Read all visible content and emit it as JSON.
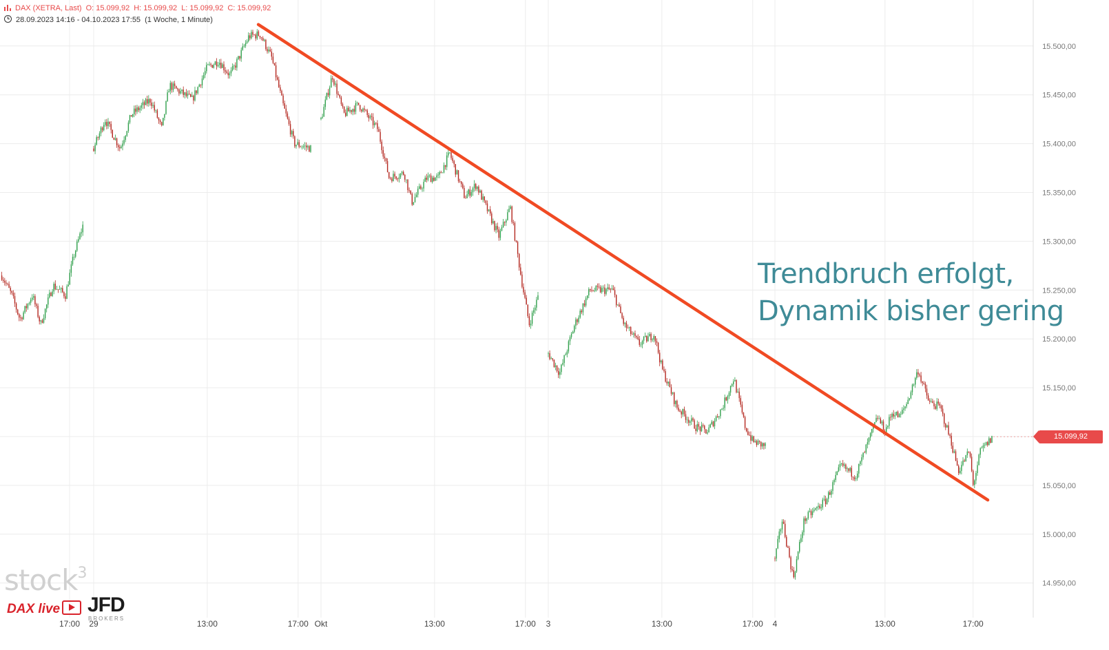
{
  "header": {
    "instrument": "DAX (XETRA, Last)",
    "open": "O: 15.099,92",
    "high": "H: 15.099,92",
    "low": "L: 15.099,92",
    "close": "C: 15.099,92",
    "range": "28.09.2023 14:16 - 04.10.2023 17:55",
    "interval": "(1 Woche, 1 Minute)"
  },
  "annotation": {
    "line1": "Trendbruch erfolgt,",
    "line2": "Dynamik bisher gering"
  },
  "last_price_label": "15.099,92",
  "logos": {
    "stock": "stock",
    "stock_sup": "3",
    "dax_live": "DAX live",
    "broker": "JFD",
    "broker_sub": "BROKERS"
  },
  "colors": {
    "trendline": "#f04a23",
    "up_candle": "#2e9e4a",
    "down_candle": "#b3261e",
    "annotation_text": "#3f8b97",
    "price_tag": "#e84a4a",
    "grid": "#ececec"
  },
  "chart_data": {
    "type": "candlestick",
    "title": "",
    "y_axis": {
      "position": "right",
      "ticks": [
        14950,
        15000,
        15050,
        15100,
        15150,
        15200,
        15250,
        15300,
        15350,
        15400,
        15450,
        15500
      ],
      "tick_labels": [
        "14.950,00",
        "15.000,00",
        "15.050,00",
        "15.100,00",
        "15.150,00",
        "15.200,00",
        "15.250,00",
        "15.300,00",
        "15.350,00",
        "15.400,00",
        "15.450,00",
        "15.500,00"
      ],
      "ylim": [
        14930,
        15540
      ]
    },
    "x_axis": {
      "sessions": [
        {
          "date": "28.09.2023",
          "start": "14:16",
          "end": "17:35"
        },
        {
          "date": "29.09.2023",
          "start": "08:00",
          "end": "17:35"
        },
        {
          "date": "02.10.2023",
          "start": "08:00",
          "end": "17:35"
        },
        {
          "date": "03.10.2023",
          "start": "08:00",
          "end": "17:35"
        },
        {
          "date": "04.10.2023",
          "start": "08:00",
          "end": "17:55"
        }
      ],
      "ticks": [
        {
          "label": "17:00",
          "session": 0,
          "time": "17:00"
        },
        {
          "label": "29",
          "session": 1,
          "time": "08:00"
        },
        {
          "label": "13:00",
          "session": 1,
          "time": "13:00"
        },
        {
          "label": "17:00",
          "session": 1,
          "time": "17:00"
        },
        {
          "label": "Okt",
          "session": 2,
          "time": "08:00"
        },
        {
          "label": "13:00",
          "session": 2,
          "time": "13:00"
        },
        {
          "label": "17:00",
          "session": 2,
          "time": "17:00"
        },
        {
          "label": "3",
          "session": 3,
          "time": "08:00"
        },
        {
          "label": "13:00",
          "session": 3,
          "time": "13:00"
        },
        {
          "label": "17:00",
          "session": 3,
          "time": "17:00"
        },
        {
          "label": "4",
          "session": 4,
          "time": "08:00"
        },
        {
          "label": "13:00",
          "session": 4,
          "time": "13:00"
        },
        {
          "label": "17:00",
          "session": 4,
          "time": "17:00"
        }
      ],
      "extra_gridline": {
        "session": 4,
        "time": "22:00"
      }
    },
    "price_path": [
      {
        "session": 0,
        "time": "14:16",
        "value": 15265
      },
      {
        "session": 0,
        "time": "14:40",
        "value": 15245
      },
      {
        "session": 0,
        "time": "15:00",
        "value": 15220
      },
      {
        "session": 0,
        "time": "15:30",
        "value": 15245
      },
      {
        "session": 0,
        "time": "15:50",
        "value": 15215
      },
      {
        "session": 0,
        "time": "16:20",
        "value": 15255
      },
      {
        "session": 0,
        "time": "16:50",
        "value": 15245
      },
      {
        "session": 0,
        "time": "17:10",
        "value": 15285
      },
      {
        "session": 0,
        "time": "17:35",
        "value": 15320
      },
      {
        "session": 1,
        "time": "08:00",
        "value": 15395
      },
      {
        "session": 1,
        "time": "08:30",
        "value": 15425
      },
      {
        "session": 1,
        "time": "09:10",
        "value": 15395
      },
      {
        "session": 1,
        "time": "09:40",
        "value": 15430
      },
      {
        "session": 1,
        "time": "10:30",
        "value": 15445
      },
      {
        "session": 1,
        "time": "11:00",
        "value": 15415
      },
      {
        "session": 1,
        "time": "11:20",
        "value": 15460
      },
      {
        "session": 1,
        "time": "12:20",
        "value": 15445
      },
      {
        "session": 1,
        "time": "13:00",
        "value": 15478
      },
      {
        "session": 1,
        "time": "13:30",
        "value": 15485
      },
      {
        "session": 1,
        "time": "14:00",
        "value": 15470
      },
      {
        "session": 1,
        "time": "14:20",
        "value": 15485
      },
      {
        "session": 1,
        "time": "14:50",
        "value": 15510
      },
      {
        "session": 1,
        "time": "15:20",
        "value": 15512
      },
      {
        "session": 1,
        "time": "15:50",
        "value": 15488
      },
      {
        "session": 1,
        "time": "16:20",
        "value": 15440
      },
      {
        "session": 1,
        "time": "16:50",
        "value": 15400
      },
      {
        "session": 1,
        "time": "17:35",
        "value": 15395
      },
      {
        "session": 2,
        "time": "08:00",
        "value": 15425
      },
      {
        "session": 2,
        "time": "08:30",
        "value": 15470
      },
      {
        "session": 2,
        "time": "09:00",
        "value": 15430
      },
      {
        "session": 2,
        "time": "09:40",
        "value": 15440
      },
      {
        "session": 2,
        "time": "10:30",
        "value": 15415
      },
      {
        "session": 2,
        "time": "11:00",
        "value": 15365
      },
      {
        "session": 2,
        "time": "11:40",
        "value": 15370
      },
      {
        "session": 2,
        "time": "12:00",
        "value": 15340
      },
      {
        "session": 2,
        "time": "12:40",
        "value": 15365
      },
      {
        "session": 2,
        "time": "13:10",
        "value": 15365
      },
      {
        "session": 2,
        "time": "13:40",
        "value": 15390
      },
      {
        "session": 2,
        "time": "14:20",
        "value": 15345
      },
      {
        "session": 2,
        "time": "14:50",
        "value": 15358
      },
      {
        "session": 2,
        "time": "15:50",
        "value": 15305
      },
      {
        "session": 2,
        "time": "16:20",
        "value": 15335
      },
      {
        "session": 2,
        "time": "16:50",
        "value": 15260
      },
      {
        "session": 2,
        "time": "17:10",
        "value": 15215
      },
      {
        "session": 2,
        "time": "17:35",
        "value": 15245
      },
      {
        "session": 3,
        "time": "08:00",
        "value": 15185
      },
      {
        "session": 3,
        "time": "08:30",
        "value": 15165
      },
      {
        "session": 3,
        "time": "09:10",
        "value": 15215
      },
      {
        "session": 3,
        "time": "09:50",
        "value": 15250
      },
      {
        "session": 3,
        "time": "10:50",
        "value": 15250
      },
      {
        "session": 3,
        "time": "11:20",
        "value": 15215
      },
      {
        "session": 3,
        "time": "12:00",
        "value": 15195
      },
      {
        "session": 3,
        "time": "12:40",
        "value": 15205
      },
      {
        "session": 3,
        "time": "13:00",
        "value": 15170
      },
      {
        "session": 3,
        "time": "13:40",
        "value": 15130
      },
      {
        "session": 3,
        "time": "14:30",
        "value": 15110
      },
      {
        "session": 3,
        "time": "15:00",
        "value": 15105
      },
      {
        "session": 3,
        "time": "15:40",
        "value": 15130
      },
      {
        "session": 3,
        "time": "16:10",
        "value": 15160
      },
      {
        "session": 3,
        "time": "16:40",
        "value": 15110
      },
      {
        "session": 3,
        "time": "17:00",
        "value": 15095
      },
      {
        "session": 3,
        "time": "17:35",
        "value": 15090
      },
      {
        "session": 4,
        "time": "08:00",
        "value": 14975
      },
      {
        "session": 4,
        "time": "08:20",
        "value": 15015
      },
      {
        "session": 4,
        "time": "08:50",
        "value": 14955
      },
      {
        "session": 4,
        "time": "09:20",
        "value": 15015
      },
      {
        "session": 4,
        "time": "10:20",
        "value": 15035
      },
      {
        "session": 4,
        "time": "11:00",
        "value": 15070
      },
      {
        "session": 4,
        "time": "11:40",
        "value": 15060
      },
      {
        "session": 4,
        "time": "12:20",
        "value": 15100
      },
      {
        "session": 4,
        "time": "12:40",
        "value": 15120
      },
      {
        "session": 4,
        "time": "13:00",
        "value": 15105
      },
      {
        "session": 4,
        "time": "13:20",
        "value": 15125
      },
      {
        "session": 4,
        "time": "13:40",
        "value": 15120
      },
      {
        "session": 4,
        "time": "14:00",
        "value": 15135
      },
      {
        "session": 4,
        "time": "14:30",
        "value": 15168
      },
      {
        "session": 4,
        "time": "15:00",
        "value": 15135
      },
      {
        "session": 4,
        "time": "15:30",
        "value": 15130
      },
      {
        "session": 4,
        "time": "16:00",
        "value": 15095
      },
      {
        "session": 4,
        "time": "16:20",
        "value": 15065
      },
      {
        "session": 4,
        "time": "16:50",
        "value": 15085
      },
      {
        "session": 4,
        "time": "17:00",
        "value": 15050
      },
      {
        "session": 4,
        "time": "17:20",
        "value": 15085
      },
      {
        "session": 4,
        "time": "17:55",
        "value": 15100
      }
    ],
    "last_price": 15099.92,
    "trendline": {
      "start": {
        "session": 1,
        "time": "15:15",
        "value": 15522
      },
      "end": {
        "session": 4,
        "time": "17:40",
        "value": 15035
      }
    },
    "gridlines": true,
    "legend": "none"
  }
}
